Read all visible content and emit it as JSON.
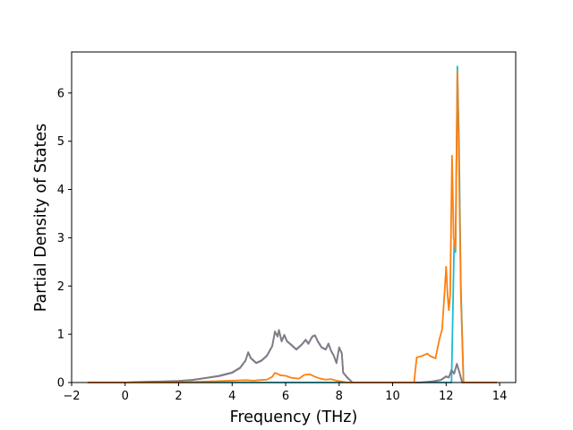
{
  "chart_data": {
    "type": "line",
    "title": "",
    "xlabel": "Frequency (THz)",
    "ylabel": "Partial Density of States",
    "xlim": [
      -2.0,
      14.6
    ],
    "ylim": [
      0,
      6.85
    ],
    "xticks": [
      -2,
      0,
      2,
      4,
      6,
      8,
      10,
      12,
      14
    ],
    "yticks": [
      0,
      1,
      2,
      3,
      4,
      5,
      6
    ],
    "grid": false,
    "legend": "none",
    "series": [
      {
        "color": "#17becf",
        "points": [
          [
            -1.4,
            0
          ],
          [
            12.2,
            0
          ],
          [
            12.3,
            2.9
          ],
          [
            12.35,
            2.7
          ],
          [
            12.42,
            6.55
          ],
          [
            12.48,
            5.0
          ],
          [
            12.55,
            2.0
          ],
          [
            12.65,
            0
          ],
          [
            13.9,
            0
          ]
        ]
      },
      {
        "color": "#9467bd",
        "points": [
          [
            -1.4,
            0
          ],
          [
            0.0,
            0
          ],
          [
            0.5,
            0.01
          ],
          [
            1.0,
            0.015
          ],
          [
            1.5,
            0.02
          ],
          [
            2.0,
            0.03
          ],
          [
            2.5,
            0.05
          ],
          [
            3.0,
            0.09
          ],
          [
            3.5,
            0.13
          ],
          [
            4.0,
            0.2
          ],
          [
            4.3,
            0.3
          ],
          [
            4.5,
            0.45
          ],
          [
            4.6,
            0.62
          ],
          [
            4.7,
            0.5
          ],
          [
            4.9,
            0.4
          ],
          [
            5.1,
            0.45
          ],
          [
            5.3,
            0.55
          ],
          [
            5.5,
            0.75
          ],
          [
            5.6,
            1.05
          ],
          [
            5.7,
            0.95
          ],
          [
            5.75,
            1.08
          ],
          [
            5.85,
            0.85
          ],
          [
            5.95,
            0.98
          ],
          [
            6.05,
            0.85
          ],
          [
            6.2,
            0.78
          ],
          [
            6.4,
            0.68
          ],
          [
            6.6,
            0.78
          ],
          [
            6.75,
            0.88
          ],
          [
            6.85,
            0.8
          ],
          [
            7.0,
            0.95
          ],
          [
            7.1,
            0.97
          ],
          [
            7.2,
            0.85
          ],
          [
            7.35,
            0.72
          ],
          [
            7.5,
            0.68
          ],
          [
            7.6,
            0.8
          ],
          [
            7.7,
            0.65
          ],
          [
            7.8,
            0.55
          ],
          [
            7.9,
            0.4
          ],
          [
            8.0,
            0.72
          ],
          [
            8.1,
            0.6
          ],
          [
            8.15,
            0.2
          ],
          [
            8.3,
            0.1
          ],
          [
            8.5,
            0.0
          ],
          [
            11.0,
            0.0
          ],
          [
            11.5,
            0.02
          ],
          [
            11.8,
            0.05
          ],
          [
            12.0,
            0.12
          ],
          [
            12.1,
            0.1
          ],
          [
            12.2,
            0.25
          ],
          [
            12.3,
            0.18
          ],
          [
            12.4,
            0.38
          ],
          [
            12.5,
            0.2
          ],
          [
            12.6,
            0.0
          ],
          [
            13.9,
            0.0
          ]
        ]
      },
      {
        "color": "#7f7f7f",
        "points": [
          [
            -1.4,
            0
          ],
          [
            0.0,
            0
          ],
          [
            0.5,
            0.012
          ],
          [
            1.0,
            0.018
          ],
          [
            1.5,
            0.025
          ],
          [
            2.0,
            0.035
          ],
          [
            2.5,
            0.055
          ],
          [
            3.0,
            0.095
          ],
          [
            3.5,
            0.14
          ],
          [
            4.0,
            0.21
          ],
          [
            4.3,
            0.31
          ],
          [
            4.5,
            0.46
          ],
          [
            4.6,
            0.63
          ],
          [
            4.7,
            0.51
          ],
          [
            4.9,
            0.41
          ],
          [
            5.1,
            0.46
          ],
          [
            5.3,
            0.56
          ],
          [
            5.5,
            0.76
          ],
          [
            5.6,
            1.06
          ],
          [
            5.7,
            0.96
          ],
          [
            5.75,
            1.09
          ],
          [
            5.85,
            0.86
          ],
          [
            5.95,
            0.99
          ],
          [
            6.05,
            0.86
          ],
          [
            6.2,
            0.79
          ],
          [
            6.4,
            0.69
          ],
          [
            6.6,
            0.79
          ],
          [
            6.75,
            0.89
          ],
          [
            6.85,
            0.81
          ],
          [
            7.0,
            0.96
          ],
          [
            7.1,
            0.98
          ],
          [
            7.2,
            0.86
          ],
          [
            7.35,
            0.73
          ],
          [
            7.5,
            0.69
          ],
          [
            7.6,
            0.81
          ],
          [
            7.7,
            0.66
          ],
          [
            7.8,
            0.56
          ],
          [
            7.9,
            0.41
          ],
          [
            8.0,
            0.73
          ],
          [
            8.1,
            0.61
          ],
          [
            8.15,
            0.21
          ],
          [
            8.3,
            0.11
          ],
          [
            8.5,
            0.0
          ],
          [
            11.0,
            0.0
          ],
          [
            11.5,
            0.025
          ],
          [
            11.8,
            0.055
          ],
          [
            12.0,
            0.13
          ],
          [
            12.1,
            0.11
          ],
          [
            12.2,
            0.26
          ],
          [
            12.3,
            0.19
          ],
          [
            12.4,
            0.39
          ],
          [
            12.5,
            0.21
          ],
          [
            12.6,
            0.0
          ],
          [
            13.9,
            0.0
          ]
        ]
      },
      {
        "color": "#ff7f0e",
        "points": [
          [
            -1.4,
            0
          ],
          [
            2.0,
            0
          ],
          [
            2.5,
            0.01
          ],
          [
            3.0,
            0.02
          ],
          [
            3.5,
            0.03
          ],
          [
            4.0,
            0.04
          ],
          [
            4.5,
            0.05
          ],
          [
            4.8,
            0.04
          ],
          [
            5.0,
            0.05
          ],
          [
            5.3,
            0.06
          ],
          [
            5.5,
            0.12
          ],
          [
            5.6,
            0.2
          ],
          [
            5.7,
            0.18
          ],
          [
            5.8,
            0.15
          ],
          [
            6.0,
            0.14
          ],
          [
            6.2,
            0.1
          ],
          [
            6.5,
            0.08
          ],
          [
            6.7,
            0.16
          ],
          [
            6.9,
            0.17
          ],
          [
            7.1,
            0.12
          ],
          [
            7.3,
            0.08
          ],
          [
            7.5,
            0.06
          ],
          [
            7.7,
            0.07
          ],
          [
            7.9,
            0.04
          ],
          [
            8.1,
            0.02
          ],
          [
            8.3,
            0.0
          ],
          [
            10.8,
            0.0
          ],
          [
            10.9,
            0.52
          ],
          [
            11.1,
            0.55
          ],
          [
            11.3,
            0.6
          ],
          [
            11.4,
            0.55
          ],
          [
            11.6,
            0.5
          ],
          [
            11.75,
            0.9
          ],
          [
            11.85,
            1.1
          ],
          [
            11.95,
            1.95
          ],
          [
            12.0,
            2.4
          ],
          [
            12.05,
            1.85
          ],
          [
            12.1,
            1.5
          ],
          [
            12.15,
            1.8
          ],
          [
            12.22,
            4.7
          ],
          [
            12.28,
            3.0
          ],
          [
            12.35,
            2.75
          ],
          [
            12.42,
            6.45
          ],
          [
            12.48,
            4.5
          ],
          [
            12.55,
            1.8
          ],
          [
            12.65,
            0.0
          ],
          [
            13.9,
            0.0
          ]
        ]
      }
    ]
  }
}
